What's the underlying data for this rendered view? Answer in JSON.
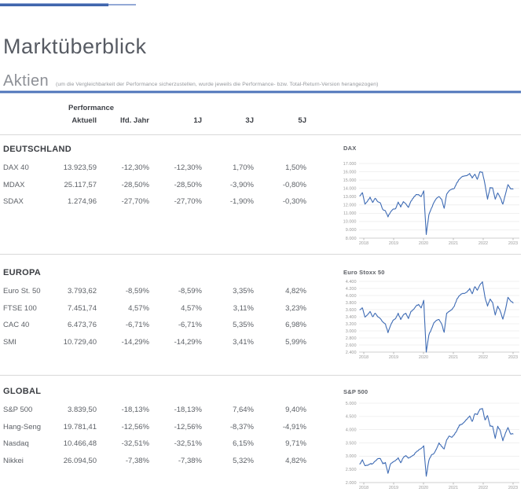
{
  "page": {
    "title": "Marktüberblick",
    "section_title": "Aktien",
    "section_note": "(um die Vergleichbarkeit der Performance sicherzustellen, wurde jeweils die Performance- bzw. Total-Return-Version herangezogen)"
  },
  "table": {
    "group_header": "Performance",
    "columns": [
      "Aktuell",
      "lfd. Jahr",
      "1J",
      "3J",
      "5J"
    ],
    "groups": [
      {
        "name": "DEUTSCHLAND",
        "rows": [
          {
            "label": "DAX 40",
            "values": [
              "13.923,59",
              "-12,30%",
              "-12,30%",
              "1,70%",
              "1,50%"
            ]
          },
          {
            "label": "MDAX",
            "values": [
              "25.117,57",
              "-28,50%",
              "-28,50%",
              "-3,90%",
              "-0,80%"
            ]
          },
          {
            "label": "SDAX",
            "values": [
              "1.274,96",
              "-27,70%",
              "-27,70%",
              "-1,90%",
              "-0,30%"
            ]
          }
        ]
      },
      {
        "name": "EUROPA",
        "rows": [
          {
            "label": "Euro St. 50",
            "values": [
              "3.793,62",
              "-8,59%",
              "-8,59%",
              "3,35%",
              "4,82%"
            ]
          },
          {
            "label": "FTSE 100",
            "values": [
              "7.451,74",
              "4,57%",
              "4,57%",
              "3,11%",
              "3,23%"
            ]
          },
          {
            "label": "CAC 40",
            "values": [
              "6.473,76",
              "-6,71%",
              "-6,71%",
              "5,35%",
              "6,98%"
            ]
          },
          {
            "label": "SMI",
            "values": [
              "10.729,40",
              "-14,29%",
              "-14,29%",
              "3,41%",
              "5,99%"
            ]
          }
        ]
      },
      {
        "name": "GLOBAL",
        "rows": [
          {
            "label": "S&P 500",
            "values": [
              "3.839,50",
              "-18,13%",
              "-18,13%",
              "7,64%",
              "9,40%"
            ]
          },
          {
            "label": "Hang-Seng",
            "values": [
              "19.781,41",
              "-12,56%",
              "-12,56%",
              "-8,37%",
              "-4,91%"
            ]
          },
          {
            "label": "Nasdaq",
            "values": [
              "10.466,48",
              "-32,51%",
              "-32,51%",
              "6,15%",
              "9,71%"
            ]
          },
          {
            "label": "Nikkei",
            "values": [
              "26.094,50",
              "-7,38%",
              "-7,38%",
              "5,32%",
              "4,82%"
            ]
          }
        ]
      }
    ]
  },
  "colors": {
    "accent_blue": "#4e74ba",
    "accent_blue_light": "#a9bcde",
    "topbar_dark": "#4066ad",
    "topbar_light": "#93a9d6",
    "divider_gray": "#d9d9d9",
    "chart_line": "#3e6bb4",
    "grid_gray": "#ebebeb",
    "axis_gray": "#cfcfcf",
    "tick_text": "#9b9b9b"
  },
  "chart_data": [
    {
      "type": "line",
      "title": "DAX",
      "x_range": [
        2018,
        2023
      ],
      "x_tick_labels": [
        "2018",
        "2019",
        "2020",
        "2021",
        "2022",
        "2023"
      ],
      "ytick_values": [
        17000,
        16000,
        15000,
        14000,
        13000,
        12000,
        11000,
        10000,
        9000,
        8000
      ],
      "ytick_labels": [
        "17.000",
        "16.000",
        "15.000",
        "14.000",
        "13.000",
        "12.000",
        "11.000",
        "10.000",
        "9.000",
        "8.000"
      ],
      "ylim": [
        8000,
        17000
      ],
      "grid": true,
      "legend": "none",
      "values_monthly_2018_to_2023": [
        13100,
        13480,
        12100,
        12450,
        12950,
        12300,
        12800,
        12400,
        12250,
        11450,
        11300,
        10560,
        11150,
        11500,
        11550,
        12350,
        11750,
        12400,
        12150,
        11700,
        12450,
        12850,
        13250,
        13250,
        13000,
        13700,
        8440,
        10800,
        11600,
        12300,
        12800,
        13000,
        12700,
        11600,
        13300,
        13720,
        13900,
        14000,
        14700,
        15100,
        15400,
        15500,
        15550,
        15800,
        15250,
        15700,
        15100,
        16000,
        15950,
        14450,
        12700,
        14100,
        14050,
        12700,
        13450,
        12850,
        12100,
        13300,
        14450,
        13950,
        13920
      ]
    },
    {
      "type": "line",
      "title": "Euro Stoxx 50",
      "x_range": [
        2018,
        2023
      ],
      "x_tick_labels": [
        "2018",
        "2019",
        "2020",
        "2021",
        "2022",
        "2023"
      ],
      "ytick_values": [
        4400,
        4200,
        4000,
        3800,
        3600,
        3400,
        3200,
        3000,
        2800,
        2600,
        2400
      ],
      "ytick_labels": [
        "4.400",
        "4.200",
        "4.000",
        "3.800",
        "3.600",
        "3.400",
        "3.200",
        "3.000",
        "2.800",
        "2.600",
        "2.400"
      ],
      "ylim": [
        2400,
        4400
      ],
      "grid": true,
      "legend": "none",
      "values_monthly_2018_to_2023": [
        3600,
        3650,
        3390,
        3450,
        3550,
        3400,
        3500,
        3400,
        3350,
        3250,
        3200,
        2950,
        3150,
        3300,
        3350,
        3500,
        3320,
        3450,
        3500,
        3350,
        3550,
        3600,
        3700,
        3750,
        3650,
        3865,
        2400,
        2880,
        3050,
        3230,
        3300,
        3320,
        3200,
        2960,
        3500,
        3550,
        3600,
        3700,
        3900,
        4000,
        4050,
        4060,
        4100,
        4200,
        4050,
        4250,
        4150,
        4300,
        4390,
        3950,
        3700,
        3900,
        3800,
        3450,
        3700,
        3550,
        3330,
        3600,
        3950,
        3850,
        3790
      ]
    },
    {
      "type": "line",
      "title": "S&P 500",
      "x_range": [
        2018,
        2023
      ],
      "x_tick_labels": [
        "2018",
        "2019",
        "2020",
        "2021",
        "2022",
        "2023"
      ],
      "ytick_values": [
        5000,
        4500,
        4000,
        3500,
        3000,
        2500,
        2000
      ],
      "ytick_labels": [
        "5.000",
        "4.500",
        "4.000",
        "3.500",
        "3.000",
        "2.500",
        "2.000"
      ],
      "ylim": [
        2000,
        5000
      ],
      "grid": true,
      "legend": "none",
      "values_monthly_2018_to_2023": [
        2700,
        2860,
        2640,
        2650,
        2700,
        2720,
        2810,
        2900,
        2910,
        2710,
        2760,
        2350,
        2700,
        2780,
        2830,
        2940,
        2750,
        2940,
        3020,
        2920,
        2980,
        3040,
        3140,
        3230,
        3290,
        3390,
        2240,
        2830,
        3040,
        3100,
        3270,
        3500,
        3360,
        3270,
        3620,
        3760,
        3710,
        3810,
        3970,
        4180,
        4200,
        4300,
        4400,
        4520,
        4310,
        4600,
        4570,
        4770,
        4800,
        4370,
        4530,
        4130,
        4130,
        3670,
        4130,
        3950,
        3580,
        3870,
        4080,
        3840,
        3840
      ]
    }
  ]
}
